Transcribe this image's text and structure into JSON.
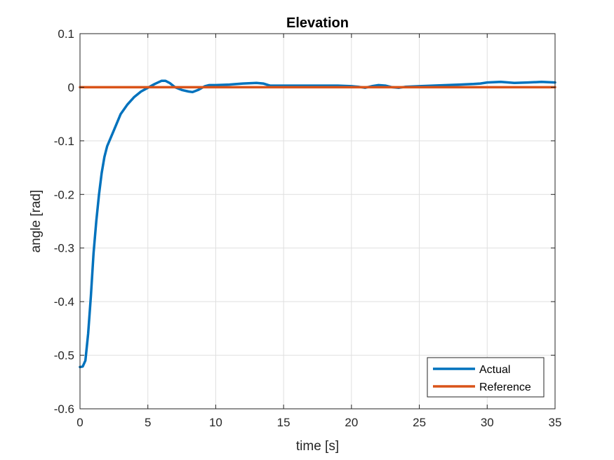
{
  "chart_data": {
    "type": "line",
    "title": "Elevation",
    "xlabel": "time [s]",
    "ylabel": "angle [rad]",
    "xlim": [
      0,
      35
    ],
    "ylim": [
      -0.6,
      0.1
    ],
    "xticks": [
      0,
      5,
      10,
      15,
      20,
      25,
      30,
      35
    ],
    "yticks": [
      -0.6,
      -0.5,
      -0.4,
      -0.3,
      -0.2,
      -0.1,
      0,
      0.1
    ],
    "xtick_labels": [
      "0",
      "5",
      "10",
      "15",
      "20",
      "25",
      "30",
      "35"
    ],
    "ytick_labels": [
      "-0.6",
      "-0.5",
      "-0.4",
      "-0.3",
      "-0.2",
      "-0.1",
      "0",
      "0.1"
    ],
    "grid": true,
    "legend_position": "bottom-right",
    "series": [
      {
        "name": "Actual",
        "color": "#0072BD",
        "x": [
          0,
          0.2,
          0.4,
          0.6,
          0.8,
          1.0,
          1.2,
          1.4,
          1.6,
          1.8,
          2.0,
          2.5,
          3.0,
          3.5,
          4.0,
          4.5,
          5.0,
          5.5,
          6.0,
          6.3,
          6.6,
          7.0,
          7.5,
          8.0,
          8.3,
          8.7,
          9.2,
          9.5,
          10,
          11,
          12,
          13,
          13.5,
          14,
          15,
          16,
          17,
          18,
          19,
          20,
          20.5,
          21,
          21.5,
          22,
          22.5,
          23,
          23.5,
          24,
          25,
          26,
          27,
          28,
          29,
          29.5,
          30,
          31,
          32,
          33,
          34,
          35
        ],
        "y": [
          -0.522,
          -0.521,
          -0.51,
          -0.46,
          -0.39,
          -0.31,
          -0.25,
          -0.2,
          -0.16,
          -0.13,
          -0.11,
          -0.08,
          -0.05,
          -0.032,
          -0.018,
          -0.008,
          -0.001,
          0.006,
          0.012,
          0.012,
          0.008,
          0.0,
          -0.005,
          -0.008,
          -0.009,
          -0.005,
          0.002,
          0.004,
          0.004,
          0.005,
          0.007,
          0.008,
          0.007,
          0.003,
          0.003,
          0.003,
          0.003,
          0.003,
          0.003,
          0.002,
          0.001,
          -0.001,
          0.002,
          0.004,
          0.003,
          0.0,
          -0.001,
          0.001,
          0.002,
          0.003,
          0.004,
          0.005,
          0.006,
          0.007,
          0.009,
          0.01,
          0.008,
          0.009,
          0.01,
          0.009
        ]
      },
      {
        "name": "Reference",
        "color": "#D95319",
        "x": [
          0,
          35
        ],
        "y": [
          0,
          0
        ]
      }
    ]
  }
}
